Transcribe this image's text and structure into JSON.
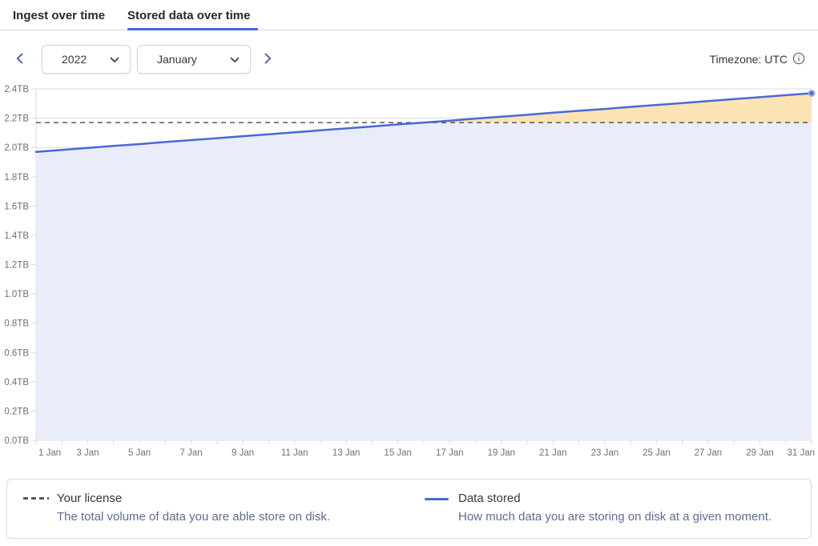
{
  "tabs": [
    {
      "label": "Ingest over time",
      "active": false
    },
    {
      "label": "Stored data over time",
      "active": true
    }
  ],
  "controls": {
    "year_select": {
      "value": "2022"
    },
    "month_select": {
      "value": "January"
    },
    "timezone_label": "Timezone: UTC",
    "icons": {
      "prev": "chevron-left",
      "next": "chevron-right",
      "select_caret": "chevron-down",
      "timezone_info": "info-circle"
    }
  },
  "legend": [
    {
      "name": "Your license",
      "description": "The total volume of data you are able store on disk.",
      "swatch": "dashed",
      "color": "#54575e"
    },
    {
      "name": "Data stored",
      "description": "How much data you are storing on disk at a given moment.",
      "swatch": "line",
      "color": "#4a68d6"
    }
  ],
  "chart_data": {
    "type": "area",
    "title": "",
    "xlabel": "",
    "ylabel": "",
    "x_unit": "day of January 2022",
    "x": [
      1,
      2,
      3,
      4,
      5,
      6,
      7,
      8,
      9,
      10,
      11,
      12,
      13,
      14,
      15,
      16,
      17,
      18,
      19,
      20,
      21,
      22,
      23,
      24,
      25,
      26,
      27,
      28,
      29,
      30,
      31
    ],
    "x_tick_labels": [
      {
        "day": 1,
        "label": "1 Jan"
      },
      {
        "day": 3,
        "label": "3 Jan"
      },
      {
        "day": 5,
        "label": "5 Jan"
      },
      {
        "day": 7,
        "label": "7 Jan"
      },
      {
        "day": 9,
        "label": "9 Jan"
      },
      {
        "day": 11,
        "label": "11 Jan"
      },
      {
        "day": 13,
        "label": "13 Jan"
      },
      {
        "day": 15,
        "label": "15 Jan"
      },
      {
        "day": 17,
        "label": "17 Jan"
      },
      {
        "day": 19,
        "label": "19 Jan"
      },
      {
        "day": 21,
        "label": "21 Jan"
      },
      {
        "day": 23,
        "label": "23 Jan"
      },
      {
        "day": 25,
        "label": "25 Jan"
      },
      {
        "day": 27,
        "label": "27 Jan"
      },
      {
        "day": 29,
        "label": "29 Jan"
      },
      {
        "day": 31,
        "label": "31 Jan"
      }
    ],
    "series": [
      {
        "name": "Data stored",
        "unit": "TB",
        "color": "#4a68d6",
        "values": [
          1.97,
          1.983,
          1.997,
          2.01,
          2.023,
          2.037,
          2.05,
          2.063,
          2.077,
          2.09,
          2.103,
          2.117,
          2.13,
          2.143,
          2.157,
          2.17,
          2.183,
          2.197,
          2.21,
          2.223,
          2.237,
          2.25,
          2.263,
          2.277,
          2.29,
          2.303,
          2.317,
          2.33,
          2.343,
          2.357,
          2.37
        ]
      }
    ],
    "reference_line": {
      "name": "Your license",
      "value": 2.17,
      "style": "dashed",
      "color": "#54575e"
    },
    "ylim": [
      0,
      2.4
    ],
    "y_ticks": [
      {
        "value": 0.0,
        "label": "0.0TB"
      },
      {
        "value": 0.2,
        "label": "0.2TB"
      },
      {
        "value": 0.4,
        "label": "0.4TB"
      },
      {
        "value": 0.6,
        "label": "0.6TB"
      },
      {
        "value": 0.8,
        "label": "0.8TB"
      },
      {
        "value": 1.0,
        "label": "1.0TB"
      },
      {
        "value": 1.2,
        "label": "1.2TB"
      },
      {
        "value": 1.4,
        "label": "1.4TB"
      },
      {
        "value": 1.6,
        "label": "1.6TB"
      },
      {
        "value": 1.8,
        "label": "1.8TB"
      },
      {
        "value": 2.0,
        "label": "2.0TB"
      },
      {
        "value": 2.2,
        "label": "2.2TB"
      },
      {
        "value": 2.4,
        "label": "2.4TB"
      }
    ],
    "grid": "horizontal",
    "legend_position": "bottom",
    "colors": {
      "grid": "#d8dbe7",
      "axis_text": "#69707d",
      "area_fill": "#e9ecf9",
      "over_license_fill": "#fbe3b4",
      "endpoint_ring": "#9db1ea"
    }
  }
}
